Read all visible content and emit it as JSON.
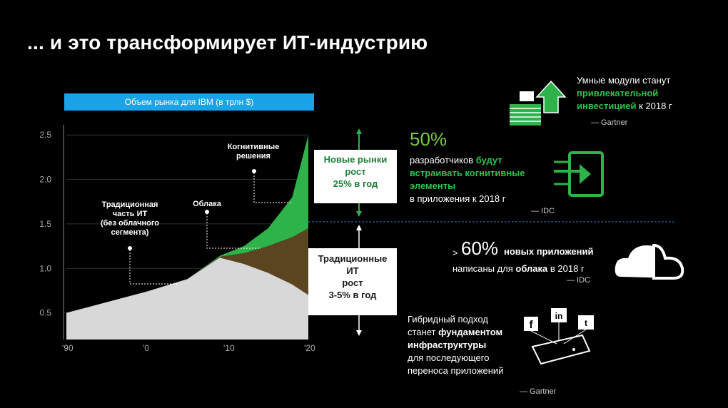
{
  "title": "... и это трансформирует ИТ-индустрию",
  "chart_data": {
    "type": "area",
    "title": "Объем рынка для IBM (в трлн $)",
    "x": [
      1990,
      1995,
      2000,
      2005,
      2009,
      2012,
      2015,
      2018,
      2020
    ],
    "xticks": [
      "'90",
      "'0",
      "'10",
      "'20"
    ],
    "yticks": [
      "0.5",
      "1.0",
      "1.5",
      "2.0",
      "2.5"
    ],
    "ylim": [
      0.2,
      2.55
    ],
    "xlim": [
      1990,
      2020
    ],
    "series": [
      {
        "name": "Традиционная часть ИТ (без облачного сегмента)",
        "values": [
          0.5,
          0.62,
          0.74,
          0.88,
          1.12,
          1.05,
          0.95,
          0.82,
          0.7
        ]
      },
      {
        "name": "Облака",
        "values": [
          0.5,
          0.62,
          0.74,
          0.88,
          1.13,
          1.17,
          1.25,
          1.35,
          1.45
        ]
      },
      {
        "name": "Когнитивные решения",
        "values": [
          0.5,
          0.62,
          0.74,
          0.88,
          1.14,
          1.25,
          1.45,
          1.8,
          2.5
        ]
      }
    ],
    "annotations": {
      "traditional": [
        "Традиционная",
        "часть ИТ",
        "(без облачного",
        "сегмента)"
      ],
      "cloud": [
        "Облака"
      ],
      "cognitive": [
        "Когнитивные",
        "решения"
      ]
    },
    "colors": {
      "traditional": "#d8d8d8",
      "cloud": "#5a4520",
      "cognitive": "#2db34a"
    }
  },
  "box_new": [
    "Новые рынки",
    "рост",
    "25% в  год"
  ],
  "box_trad": [
    "Традиционные",
    "ИТ",
    "рост",
    "3-5% в год"
  ],
  "stat50": {
    "value": "50%",
    "line1_white": "разработчиков",
    "line1_green": "будут",
    "line2": "встраивать когнитивные",
    "line3": "элементы",
    "line4": "в приложения к 2018 г",
    "source": "— IDC"
  },
  "smart": {
    "line1": "Умные модули станут",
    "line2": "привлекательной",
    "line3_green": "инвестицией",
    "line3_white": " к 2018 г",
    "source": "— Gartner"
  },
  "stat60": {
    "gt": ">",
    "value": "60%",
    "line1": "новых приложений",
    "line2_white": "написаны для ",
    "line2_bold": "облака",
    "line2_end": " в 2018 г",
    "source": "— IDC"
  },
  "hybrid": {
    "line1": "Гибридный подход",
    "line2_white": "станет ",
    "line2_bold": "фундаментом",
    "line3": "инфраструктуры",
    "line4": "для последующего",
    "line5": "переноса приложений",
    "source": "— Gartner"
  },
  "icons": [
    "money-up-icon",
    "enter-arrow-icon",
    "cloud-icon",
    "social-device-icon"
  ]
}
